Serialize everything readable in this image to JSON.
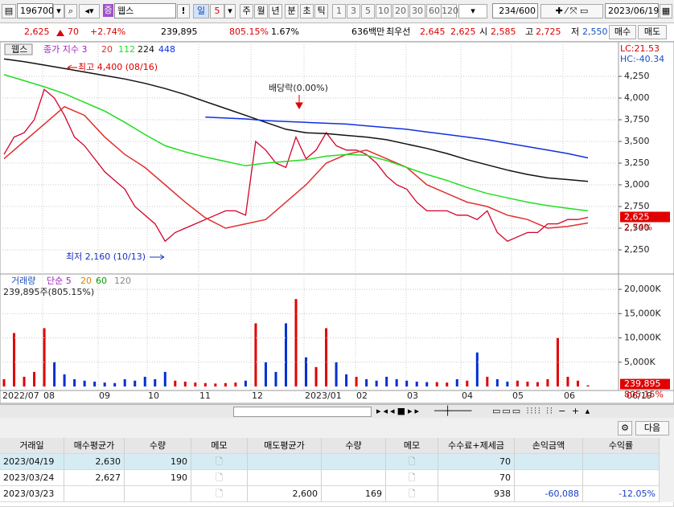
{
  "toolbar": {
    "code": "196700",
    "market_badge": "증",
    "name": "웹스",
    "alert": "!",
    "period": "일",
    "period_count": "5",
    "periods": [
      "주",
      "월",
      "년",
      "분",
      "초",
      "틱"
    ],
    "intervals": [
      "1",
      "3",
      "5",
      "10",
      "20",
      "30",
      "60",
      "120"
    ],
    "count": "234/600",
    "date": "2023/06/19"
  },
  "quote": {
    "price": "2,625",
    "change": "70",
    "change_rate": "+2.74%",
    "volume": "239,895",
    "volume_ratio": "805.15%",
    "turnover": "1.67%",
    "amount": "636백만",
    "best_label": "최우선",
    "ask": "2,645",
    "bid": "2,625",
    "open_label": "시",
    "open": "2,585",
    "high_label": "고",
    "high": "2,725",
    "low_label": "저",
    "low": "2,550",
    "buy": "매수",
    "sell": "매도"
  },
  "chart_data": [
    {
      "type": "line",
      "title": "웹스",
      "lc": "LC:21.53",
      "hc": "HC:-40.34",
      "annotations": [
        "최고 4,400 (08/16)",
        "최저 2,160 (10/13)",
        "배당락(0.00%)"
      ],
      "ylim": [
        2000,
        4556
      ],
      "yticks": [
        {
          "value": 4250,
          "label": "4,250"
        },
        {
          "value": 4000,
          "label": "4,000"
        },
        {
          "value": 3750,
          "label": "3,750"
        },
        {
          "value": 3500,
          "label": "3,500"
        },
        {
          "value": 3250,
          "label": "3,250"
        },
        {
          "value": 3000,
          "label": "3,000"
        },
        {
          "value": 2750,
          "label": "2,750"
        },
        {
          "value": 2500,
          "label": "2,500"
        },
        {
          "value": 2250,
          "label": "2,250"
        }
      ],
      "grid": true,
      "last_price": {
        "value": 2625,
        "label": "2,625"
      },
      "last_change": "2.74%",
      "date_labels": [
        "2022/07",
        "08",
        "09",
        "10",
        "11",
        "12",
        "2023/01",
        "02",
        "03",
        "04",
        "05",
        "06",
        "06/19"
      ],
      "series": [
        {
          "name": "종가 지수 3",
          "color": "#d4002a",
          "values": [
            3350,
            3550,
            3600,
            3750,
            4100,
            4000,
            3800,
            3550,
            3450,
            3300,
            3150,
            3050,
            2950,
            2750,
            2650,
            2550,
            2350,
            2450,
            2500,
            2550,
            2600,
            2650,
            2700,
            2700,
            2650,
            3500,
            3400,
            3250,
            3200,
            3550,
            3300,
            3400,
            3600,
            3450,
            3400,
            3400,
            3350,
            3250,
            3100,
            3000,
            2950,
            2800,
            2700,
            2700,
            2700,
            2650,
            2650,
            2600,
            2700,
            2450,
            2350,
            2400,
            2450,
            2450,
            2550,
            2550,
            2600,
            2600,
            2625
          ]
        },
        {
          "name": "20",
          "color": "#e03030",
          "values": [
            3300,
            3500,
            3700,
            3900,
            3800,
            3550,
            3350,
            3200,
            3000,
            2800,
            2620,
            2500,
            2550,
            2600,
            2800,
            3000,
            3250,
            3350,
            3400,
            3300,
            3200,
            3000,
            2900,
            2800,
            2750,
            2650,
            2600,
            2500,
            2520,
            2560
          ]
        },
        {
          "name": "112",
          "color": "#22dd22",
          "values": [
            4270,
            4200,
            4130,
            4050,
            3950,
            3850,
            3720,
            3580,
            3450,
            3380,
            3320,
            3270,
            3220,
            3250,
            3270,
            3290,
            3330,
            3350,
            3340,
            3280,
            3200,
            3120,
            3050,
            2970,
            2900,
            2850,
            2800,
            2760,
            2730,
            2700
          ]
        },
        {
          "name": "224",
          "color": "#111111",
          "values": [
            4450,
            4420,
            4380,
            4340,
            4300,
            4260,
            4220,
            4170,
            4110,
            4040,
            3960,
            3880,
            3800,
            3720,
            3640,
            3600,
            3590,
            3570,
            3550,
            3520,
            3470,
            3420,
            3360,
            3290,
            3230,
            3170,
            3120,
            3080,
            3060,
            3040
          ]
        },
        {
          "name": "448",
          "color": "#1030e0",
          "values": [
            null,
            null,
            null,
            null,
            null,
            null,
            null,
            null,
            null,
            null,
            3780,
            3770,
            3760,
            3740,
            3730,
            3720,
            3710,
            3700,
            3680,
            3660,
            3640,
            3610,
            3580,
            3550,
            3520,
            3480,
            3440,
            3400,
            3360,
            3310
          ]
        }
      ]
    },
    {
      "type": "bar",
      "title": "거래량",
      "ma_label": "단순 5",
      "ma_periods": [
        "20",
        "60",
        "120"
      ],
      "summary": "239,895주(805.15%)",
      "ylim": [
        0,
        22500
      ],
      "yticks": [
        {
          "value": 20000,
          "label": "20,000K"
        },
        {
          "value": 15000,
          "label": "15,000K"
        },
        {
          "value": 10000,
          "label": "10,000K"
        },
        {
          "value": 5000,
          "label": "5,000K"
        }
      ],
      "last_value": {
        "value": 239.895,
        "label": "239,895"
      },
      "last_ratio": "805.15%",
      "up_color": "#e00000",
      "down_color": "#0030d0",
      "values": [
        1500,
        11000,
        2000,
        3000,
        12000,
        5000,
        2500,
        1500,
        1200,
        1000,
        800,
        700,
        1500,
        1200,
        2000,
        1500,
        3000,
        1200,
        1000,
        800,
        700,
        600,
        700,
        800,
        1200,
        13000,
        5000,
        3000,
        13000,
        18000,
        6000,
        4000,
        12000,
        5000,
        2500,
        2000,
        1500,
        1200,
        2000,
        1500,
        1200,
        1000,
        900,
        900,
        800,
        1500,
        1200,
        7000,
        2000,
        1500,
        1000,
        1200,
        1000,
        900,
        1500,
        10000,
        2000,
        1200,
        239.895
      ]
    }
  ],
  "table": {
    "headers": [
      "거래일",
      "매수평균가",
      "수량",
      "메모",
      "매도평균가",
      "수량",
      "메모",
      "수수료+제세금",
      "손익금액",
      "수익률"
    ],
    "rows": [
      {
        "date": "2023/04/19",
        "buy_avg": "2,630",
        "buy_qty": "190",
        "fee": "70"
      },
      {
        "date": "2023/03/24",
        "buy_avg": "2,627",
        "buy_qty": "190",
        "fee": "70"
      },
      {
        "date": "2023/03/23",
        "sell_avg": "2,600",
        "sell_qty": "169",
        "fee": "938",
        "pnl": "-60,088",
        "rate": "-12.05%"
      }
    ]
  },
  "next_button": "다음"
}
